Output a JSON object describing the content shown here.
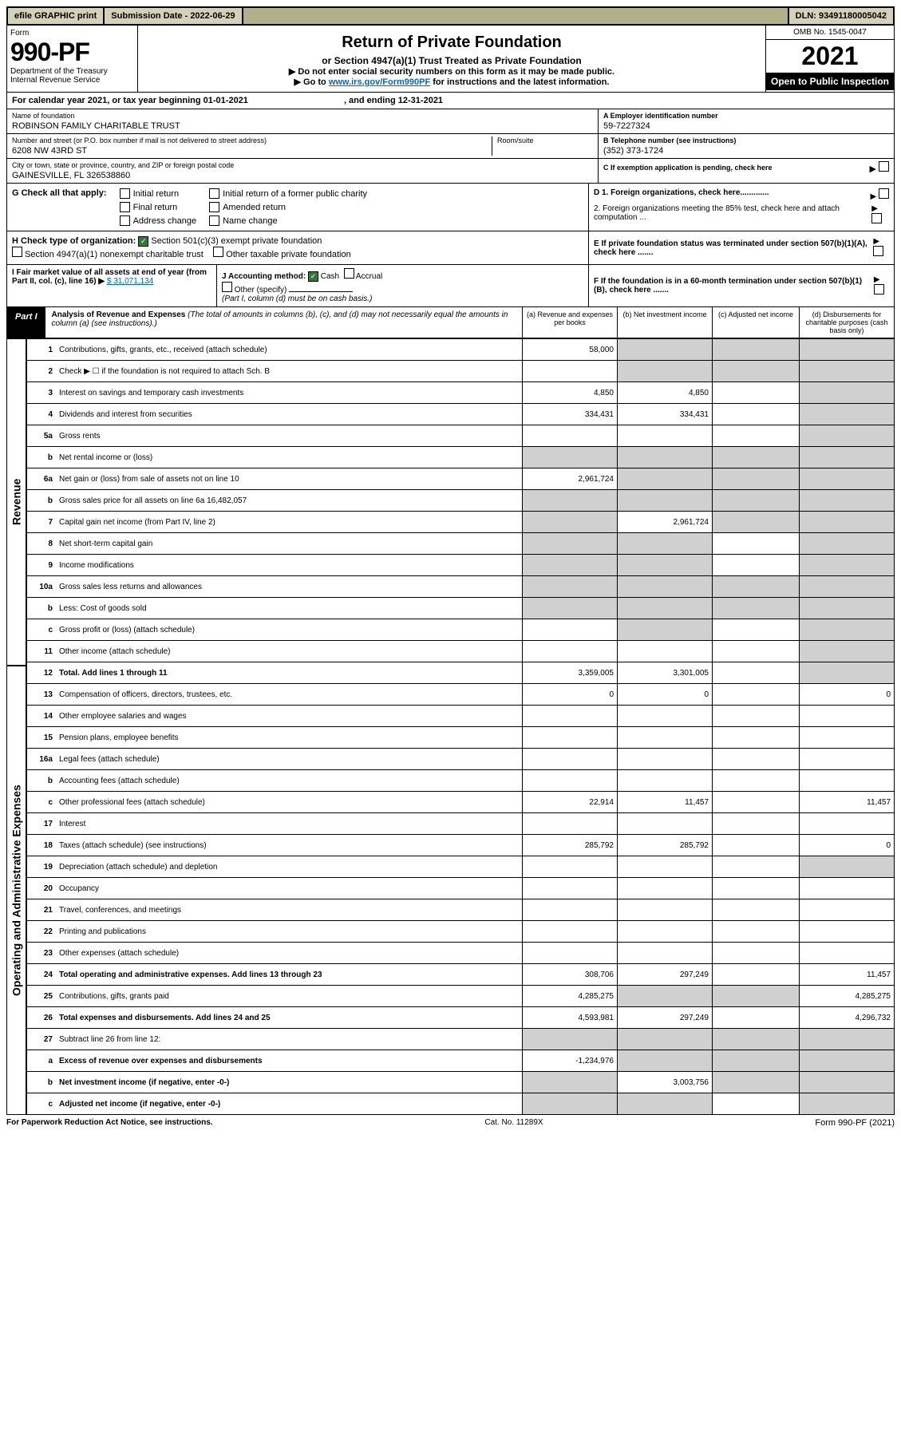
{
  "topbar": {
    "efile": "efile GRAPHIC print",
    "submission_label": "Submission Date - 2022-06-29",
    "dln": "DLN: 93491180005042"
  },
  "header": {
    "form_label": "Form",
    "form_number": "990-PF",
    "dept1": "Department of the Treasury",
    "dept2": "Internal Revenue Service",
    "title": "Return of Private Foundation",
    "subtitle": "or Section 4947(a)(1) Trust Treated as Private Foundation",
    "instr1": "▶ Do not enter social security numbers on this form as it may be made public.",
    "instr2_pre": "▶ Go to ",
    "instr2_link": "www.irs.gov/Form990PF",
    "instr2_post": " for instructions and the latest information.",
    "omb": "OMB No. 1545-0047",
    "year": "2021",
    "open": "Open to Public Inspection"
  },
  "cy": {
    "text_pre": "For calendar year 2021, or tax year beginning ",
    "begin": "01-01-2021",
    "mid": ", and ending ",
    "end": "12-31-2021"
  },
  "info": {
    "name_lbl": "Name of foundation",
    "name": "ROBINSON FAMILY CHARITABLE TRUST",
    "addr_lbl": "Number and street (or P.O. box number if mail is not delivered to street address)",
    "addr": "6208 NW 43RD ST",
    "room_lbl": "Room/suite",
    "city_lbl": "City or town, state or province, country, and ZIP or foreign postal code",
    "city": "GAINESVILLE, FL 326538860",
    "a_lbl": "A Employer identification number",
    "a_val": "59-7227324",
    "b_lbl": "B Telephone number (see instructions)",
    "b_val": "(352) 373-1724",
    "c_lbl": "C If exemption application is pending, check here"
  },
  "g": {
    "label": "G Check all that apply:",
    "opts": [
      "Initial return",
      "Final return",
      "Address change",
      "Initial return of a former public charity",
      "Amended return",
      "Name change"
    ]
  },
  "d": {
    "d1": "D 1. Foreign organizations, check here.............",
    "d2": "2. Foreign organizations meeting the 85% test, check here and attach computation ..."
  },
  "h": {
    "label": "H Check type of organization:",
    "opt1": "Section 501(c)(3) exempt private foundation",
    "opt2": "Section 4947(a)(1) nonexempt charitable trust",
    "opt3": "Other taxable private foundation"
  },
  "e": {
    "text": "E If private foundation status was terminated under section 507(b)(1)(A), check here ......."
  },
  "i": {
    "label": "I Fair market value of all assets at end of year (from Part II, col. (c), line 16) ▶",
    "val": "$  31,071,134"
  },
  "j": {
    "label": "J Accounting method:",
    "cash": "Cash",
    "accrual": "Accrual",
    "other": "Other (specify)",
    "note": "(Part I, column (d) must be on cash basis.)"
  },
  "f": {
    "text": "F If the foundation is in a 60-month termination under section 507(b)(1)(B), check here ......."
  },
  "part1": {
    "label": "Part I",
    "title": "Analysis of Revenue and Expenses",
    "note": "(The total of amounts in columns (b), (c), and (d) may not necessarily equal the amounts in column (a) (see instructions).)",
    "col_a": "(a) Revenue and expenses per books",
    "col_b": "(b) Net investment income",
    "col_c": "(c) Adjusted net income",
    "col_d": "(d) Disbursements for charitable purposes (cash basis only)"
  },
  "vert": {
    "revenue": "Revenue",
    "expenses": "Operating and Administrative Expenses"
  },
  "rows": [
    {
      "n": "1",
      "d": "Contributions, gifts, grants, etc., received (attach schedule)",
      "a": "58,000",
      "bs": true,
      "cs": true,
      "ds": true
    },
    {
      "n": "2",
      "d": "Check ▶ ☐ if the foundation is not required to attach Sch. B",
      "bs": true,
      "cs": true,
      "ds": true
    },
    {
      "n": "3",
      "d": "Interest on savings and temporary cash investments",
      "a": "4,850",
      "b": "4,850",
      "ds": true
    },
    {
      "n": "4",
      "d": "Dividends and interest from securities",
      "a": "334,431",
      "b": "334,431",
      "ds": true
    },
    {
      "n": "5a",
      "d": "Gross rents",
      "ds": true
    },
    {
      "n": "b",
      "d": "Net rental income or (loss)",
      "as": true,
      "bs": true,
      "cs": true,
      "ds": true
    },
    {
      "n": "6a",
      "d": "Net gain or (loss) from sale of assets not on line 10",
      "a": "2,961,724",
      "bs": true,
      "cs": true,
      "ds": true
    },
    {
      "n": "b",
      "d": "Gross sales price for all assets on line 6a   16,482,057",
      "as": true,
      "bs": true,
      "cs": true,
      "ds": true
    },
    {
      "n": "7",
      "d": "Capital gain net income (from Part IV, line 2)",
      "as": true,
      "b": "2,961,724",
      "cs": true,
      "ds": true
    },
    {
      "n": "8",
      "d": "Net short-term capital gain",
      "as": true,
      "bs": true,
      "ds": true
    },
    {
      "n": "9",
      "d": "Income modifications",
      "as": true,
      "bs": true,
      "ds": true
    },
    {
      "n": "10a",
      "d": "Gross sales less returns and allowances",
      "as": true,
      "bs": true,
      "cs": true,
      "ds": true
    },
    {
      "n": "b",
      "d": "Less: Cost of goods sold",
      "as": true,
      "bs": true,
      "cs": true,
      "ds": true
    },
    {
      "n": "c",
      "d": "Gross profit or (loss) (attach schedule)",
      "bs": true,
      "ds": true
    },
    {
      "n": "11",
      "d": "Other income (attach schedule)",
      "ds": true
    },
    {
      "n": "12",
      "d": "Total. Add lines 1 through 11",
      "bold": true,
      "a": "3,359,005",
      "b": "3,301,005",
      "ds": true
    },
    {
      "n": "13",
      "d": "Compensation of officers, directors, trustees, etc.",
      "a": "0",
      "b": "0",
      "d_": "0"
    },
    {
      "n": "14",
      "d": "Other employee salaries and wages"
    },
    {
      "n": "15",
      "d": "Pension plans, employee benefits"
    },
    {
      "n": "16a",
      "d": "Legal fees (attach schedule)"
    },
    {
      "n": "b",
      "d": "Accounting fees (attach schedule)"
    },
    {
      "n": "c",
      "d": "Other professional fees (attach schedule)",
      "a": "22,914",
      "b": "11,457",
      "d_": "11,457"
    },
    {
      "n": "17",
      "d": "Interest"
    },
    {
      "n": "18",
      "d": "Taxes (attach schedule) (see instructions)",
      "a": "285,792",
      "b": "285,792",
      "d_": "0"
    },
    {
      "n": "19",
      "d": "Depreciation (attach schedule) and depletion",
      "ds": true
    },
    {
      "n": "20",
      "d": "Occupancy"
    },
    {
      "n": "21",
      "d": "Travel, conferences, and meetings"
    },
    {
      "n": "22",
      "d": "Printing and publications"
    },
    {
      "n": "23",
      "d": "Other expenses (attach schedule)"
    },
    {
      "n": "24",
      "d": "Total operating and administrative expenses. Add lines 13 through 23",
      "bold": true,
      "a": "308,706",
      "b": "297,249",
      "d_": "11,457"
    },
    {
      "n": "25",
      "d": "Contributions, gifts, grants paid",
      "a": "4,285,275",
      "bs": true,
      "cs": true,
      "d_": "4,285,275"
    },
    {
      "n": "26",
      "d": "Total expenses and disbursements. Add lines 24 and 25",
      "bold": true,
      "a": "4,593,981",
      "b": "297,249",
      "d_": "4,296,732"
    },
    {
      "n": "27",
      "d": "Subtract line 26 from line 12:",
      "as": true,
      "bs": true,
      "cs": true,
      "ds": true
    },
    {
      "n": "a",
      "d": "Excess of revenue over expenses and disbursements",
      "bold": true,
      "a": "-1,234,976",
      "bs": true,
      "cs": true,
      "ds": true
    },
    {
      "n": "b",
      "d": "Net investment income (if negative, enter -0-)",
      "bold": true,
      "as": true,
      "b": "3,003,756",
      "cs": true,
      "ds": true
    },
    {
      "n": "c",
      "d": "Adjusted net income (if negative, enter -0-)",
      "bold": true,
      "as": true,
      "bs": true,
      "ds": true
    }
  ],
  "footer": {
    "left": "For Paperwork Reduction Act Notice, see instructions.",
    "mid": "Cat. No. 11289X",
    "right": "Form 990-PF (2021)"
  }
}
